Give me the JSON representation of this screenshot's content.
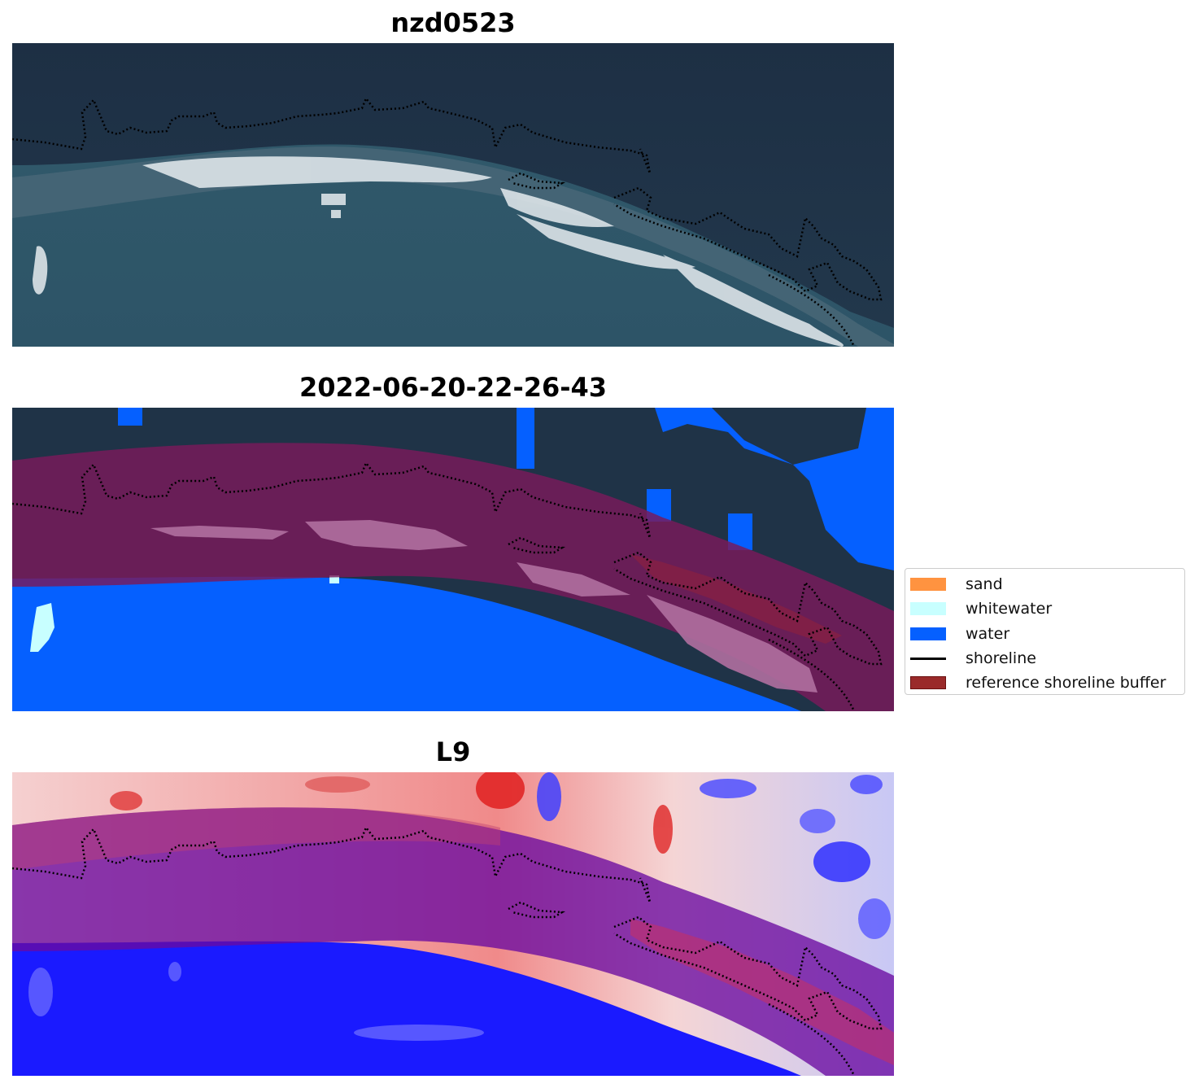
{
  "panels": [
    {
      "title": "nzd0523"
    },
    {
      "title": "2022-06-20-22-26-43"
    },
    {
      "title": "L9"
    }
  ],
  "legend": {
    "items": [
      {
        "label": "sand",
        "color": "#ff9340",
        "kind": "patch"
      },
      {
        "label": "whitewater",
        "color": "#c8ffff",
        "kind": "patch"
      },
      {
        "label": "water",
        "color": "#0560ff",
        "kind": "patch"
      },
      {
        "label": "shoreline",
        "color": "#000000",
        "kind": "line"
      },
      {
        "label": "reference shoreline buffer",
        "color": "#9a2a2a",
        "kind": "patch"
      }
    ]
  },
  "colors": {
    "land": "#1f3347",
    "sea": "#2e5a70",
    "surf": "#e8eef2",
    "buffer": "#7a1a3a",
    "water_class": "#0560ff",
    "whitewater_class": "#c8ffff",
    "index_positive": "#e83030",
    "index_negative": "#2020ff"
  }
}
